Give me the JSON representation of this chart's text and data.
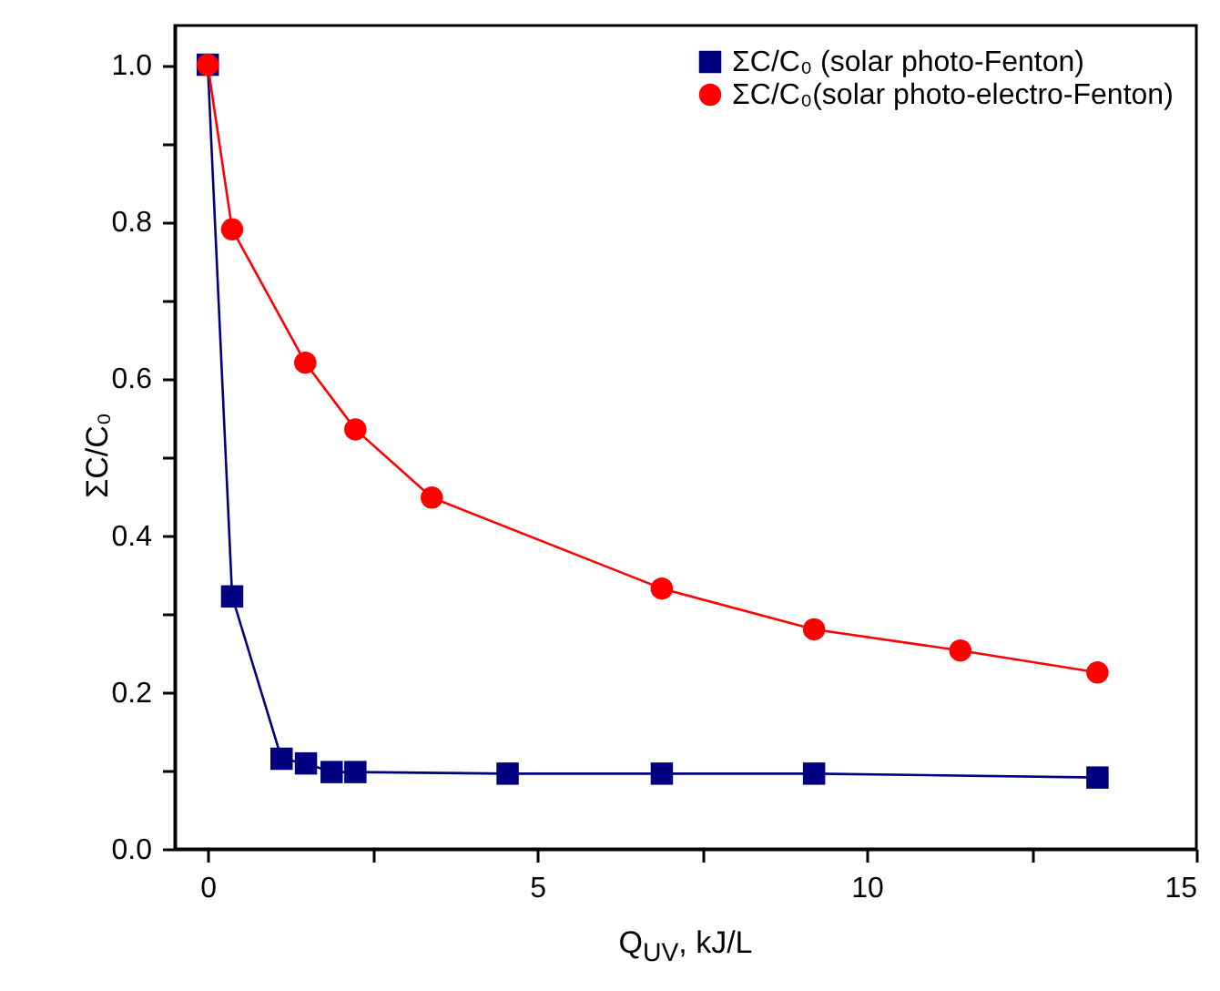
{
  "chart_data": {
    "type": "line",
    "xlabel": "Q$_{UV}$, kJ/L",
    "ylabel": "ΣC/C₀",
    "xlim": [
      -0.5,
      15
    ],
    "ylim": [
      0,
      1.05
    ],
    "xticks": [
      0,
      5,
      10,
      15,
      {
        "value": 2.5,
        "label": null
      },
      {
        "value": 7.5,
        "label": null
      },
      {
        "value": 12.5,
        "label": null
      }
    ],
    "yticks": [
      {
        "value": 0,
        "label": "0.0"
      },
      0.2,
      0.4,
      0.6,
      0.8,
      {
        "value": 1,
        "label": "1.0"
      },
      {
        "value": 0.1,
        "label": null
      },
      {
        "value": 0.3,
        "label": null
      },
      {
        "value": 0.5,
        "label": null
      },
      {
        "value": 0.7,
        "label": null
      },
      {
        "value": 0.9,
        "label": null
      }
    ],
    "grid": false,
    "legend": "top right",
    "series": [
      {
        "name": "ΣC/C₀ (solar photo-Fenton)",
        "color": "#000080",
        "marker": "square",
        "x": [
          0,
          0.37,
          1.12,
          1.49,
          1.88,
          2.24,
          4.55,
          6.89,
          9.2,
          13.5
        ],
        "values": [
          1.0,
          0.322,
          0.115,
          0.109,
          0.098,
          0.098,
          0.096,
          0.096,
          0.096,
          0.091
        ]
      },
      {
        "name": "ΣC/C₀(solar photo-electro-Fenton)",
        "color": "#ff0000",
        "marker": "circle",
        "x": [
          0,
          0.37,
          1.48,
          2.24,
          3.4,
          6.89,
          9.2,
          11.42,
          13.5
        ],
        "values": [
          1.0,
          0.79,
          0.62,
          0.535,
          0.448,
          0.332,
          0.28,
          0.253,
          0.225
        ]
      }
    ]
  }
}
